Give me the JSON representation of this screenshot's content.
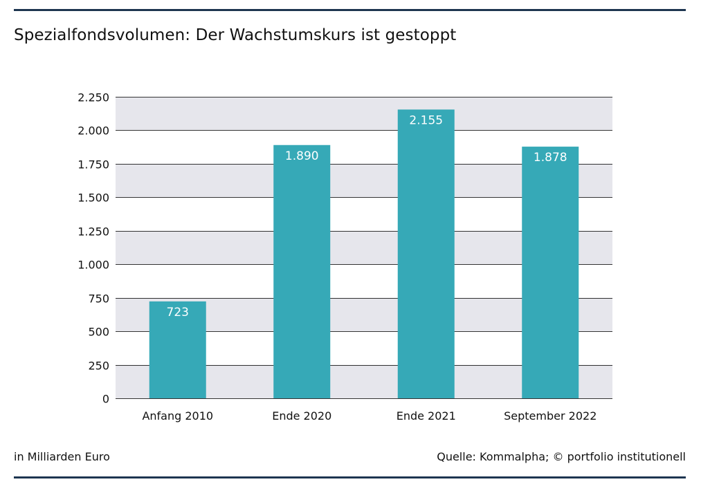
{
  "title": "Spezialfondsvolumen: Der Wachstumskurs ist gestoppt",
  "footer": {
    "unit_note": "in Milliarden Euro",
    "source": "Quelle: Kommalpha; © portfolio institutionell"
  },
  "colors": {
    "bar": "#36a9b7",
    "band": "#e6e6ec",
    "rule": "#1d3550",
    "gridline": "#333333",
    "bar_label": "#ffffff"
  },
  "chart_data": {
    "type": "bar",
    "categories": [
      "Anfang 2010",
      "Ende 2020",
      "Ende 2021",
      "September 2022"
    ],
    "values": [
      723,
      1890,
      2155,
      1878
    ],
    "data_labels": [
      "723",
      "1.890",
      "2.155",
      "1.878"
    ],
    "ylim": [
      0,
      2250
    ],
    "yticks": [
      0,
      250,
      500,
      750,
      1000,
      1250,
      1500,
      1750,
      2000,
      2250
    ],
    "ytick_labels": [
      "0",
      "250",
      "500",
      "750",
      "1.000",
      "1.250",
      "1.500",
      "1.750",
      "2.000",
      "2.250"
    ],
    "grid": true,
    "alternating_bands": true
  }
}
